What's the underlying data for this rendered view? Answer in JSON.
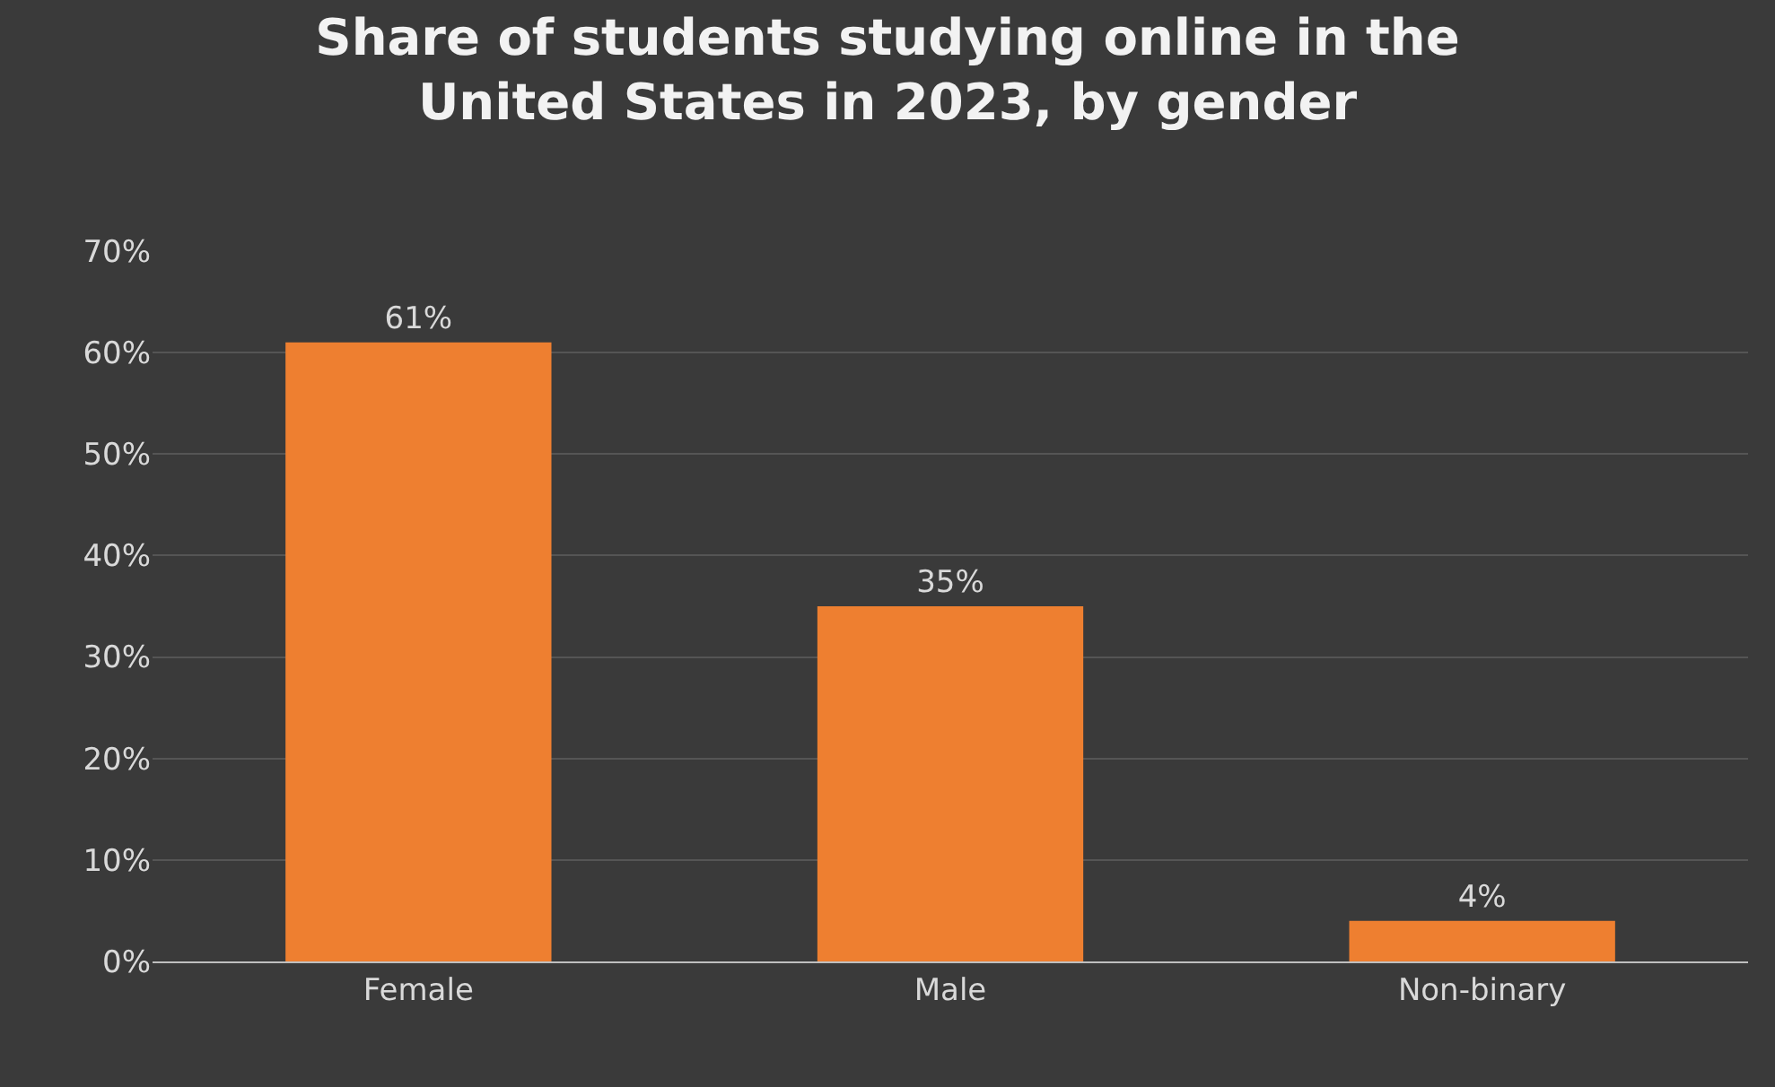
{
  "chart_data": {
    "type": "bar",
    "title": "Share of students studying online in the\nUnited States in 2023, by gender",
    "categories": [
      "Female",
      "Male",
      "Non-binary"
    ],
    "values": [
      61,
      35,
      4
    ],
    "value_labels": [
      "61%",
      "35%",
      "4%"
    ],
    "color": "#ee7f30",
    "ylim": [
      0,
      70
    ],
    "yticks": [
      {
        "value": 0,
        "label": "0%"
      },
      {
        "value": 10,
        "label": "10%"
      },
      {
        "value": 20,
        "label": "20%"
      },
      {
        "value": 30,
        "label": "30%"
      },
      {
        "value": 40,
        "label": "40%"
      },
      {
        "value": 50,
        "label": "50%"
      },
      {
        "value": 60,
        "label": "60%"
      },
      {
        "value": 70,
        "label": "70%"
      }
    ],
    "grid": "y"
  }
}
